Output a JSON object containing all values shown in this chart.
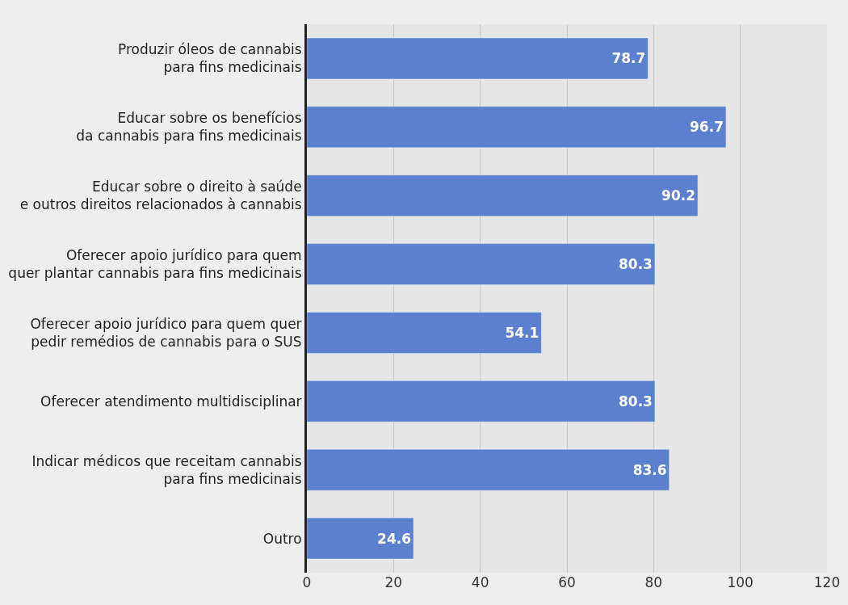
{
  "chart_data": {
    "type": "bar",
    "orientation": "horizontal",
    "categories": [
      "Produzir óleos de cannabis\npara fins medicinais",
      "Educar sobre os benefícios\nda cannabis para fins medicinais",
      "Educar sobre o direito à saúde\ne outros direitos relacionados à cannabis",
      "Oferecer apoio jurídico para quem\nquer plantar cannabis para fins medicinais",
      "Oferecer apoio jurídico para quem quer\npedir remédios de cannabis para o SUS",
      "Oferecer atendimento multidisciplinar",
      "Indicar médicos que receitam cannabis\npara fins medicinais",
      "Outro"
    ],
    "values": [
      78.7,
      96.7,
      90.2,
      80.3,
      54.1,
      80.3,
      83.6,
      24.6
    ],
    "color": "#5b80cd",
    "xlim": [
      0,
      120
    ],
    "xticks": [
      0,
      20,
      40,
      60,
      80,
      100,
      120
    ],
    "grid": "x",
    "data_labels": true,
    "legend": false
  }
}
